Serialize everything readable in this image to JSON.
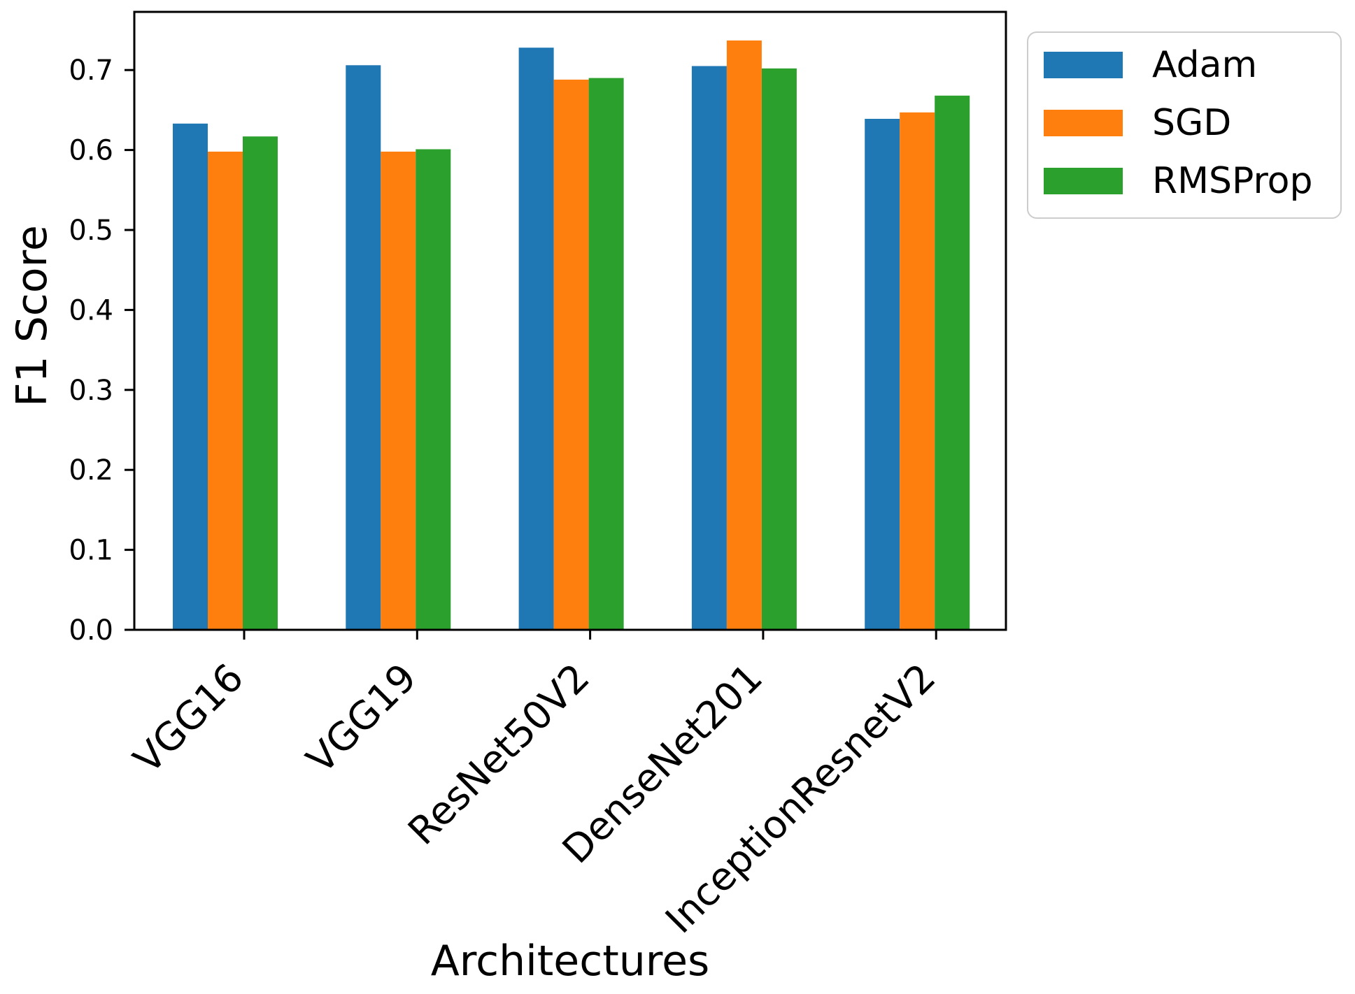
{
  "chart_data": {
    "type": "bar",
    "title": "",
    "xlabel": "Architectures",
    "ylabel": "F1 Score",
    "categories": [
      "VGG16",
      "VGG19",
      "ResNet50V2",
      "DenseNet201",
      "InceptionResnetV2"
    ],
    "series": [
      {
        "name": "Adam",
        "color": "#1f77b4",
        "values": [
          0.633,
          0.706,
          0.728,
          0.705,
          0.639
        ]
      },
      {
        "name": "SGD",
        "color": "#ff7f0e",
        "values": [
          0.598,
          0.598,
          0.688,
          0.737,
          0.647
        ]
      },
      {
        "name": "RMSProp",
        "color": "#2ca02c",
        "values": [
          0.617,
          0.601,
          0.69,
          0.702,
          0.668
        ]
      }
    ],
    "ylim": [
      0,
      0.772
    ],
    "ytick_values": [
      0.0,
      0.1,
      0.2,
      0.3,
      0.4,
      0.5,
      0.6,
      0.7
    ],
    "ytick_labels": [
      "0.0",
      "0.1",
      "0.2",
      "0.3",
      "0.4",
      "0.5",
      "0.6",
      "0.7"
    ],
    "xtick_rotation_deg": 45,
    "grid": false,
    "legend": {
      "position": "upper right",
      "entries": [
        "Adam",
        "SGD",
        "RMSProp"
      ]
    }
  },
  "colors": {
    "axis": "#000000",
    "text": "#000000",
    "legend_border": "#cccccc",
    "background": "#ffffff"
  }
}
